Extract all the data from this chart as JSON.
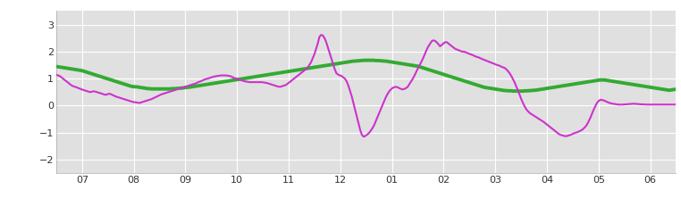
{
  "x_tick_labels": [
    "07",
    "08",
    "09",
    "10",
    "11",
    "12",
    "01",
    "02",
    "03",
    "04",
    "05",
    "06"
  ],
  "ylim": [
    -2.5,
    3.5
  ],
  "yticks": [
    -2,
    -1,
    0,
    1,
    2,
    3
  ],
  "outer_bg_color": "#ffffff",
  "plot_bg_color": "#e0e0e0",
  "green_color": "#33aa33",
  "purple_color": "#cc33cc",
  "green_linewidth": 2.8,
  "purple_linewidth": 1.5,
  "n_points": 365,
  "green_data": [
    1.45,
    1.44,
    1.43,
    1.42,
    1.41,
    1.4,
    1.39,
    1.38,
    1.37,
    1.36,
    1.35,
    1.34,
    1.33,
    1.32,
    1.31,
    1.3,
    1.28,
    1.26,
    1.24,
    1.22,
    1.2,
    1.18,
    1.16,
    1.14,
    1.12,
    1.1,
    1.08,
    1.06,
    1.04,
    1.02,
    1.0,
    0.98,
    0.96,
    0.94,
    0.92,
    0.9,
    0.88,
    0.86,
    0.84,
    0.82,
    0.8,
    0.78,
    0.76,
    0.74,
    0.72,
    0.71,
    0.7,
    0.7,
    0.69,
    0.68,
    0.67,
    0.66,
    0.65,
    0.64,
    0.63,
    0.63,
    0.62,
    0.62,
    0.62,
    0.62,
    0.62,
    0.62,
    0.62,
    0.62,
    0.62,
    0.62,
    0.62,
    0.62,
    0.63,
    0.63,
    0.63,
    0.64,
    0.64,
    0.65,
    0.65,
    0.66,
    0.67,
    0.68,
    0.68,
    0.69,
    0.7,
    0.71,
    0.72,
    0.73,
    0.74,
    0.75,
    0.76,
    0.77,
    0.78,
    0.79,
    0.8,
    0.81,
    0.82,
    0.83,
    0.84,
    0.85,
    0.86,
    0.87,
    0.88,
    0.89,
    0.9,
    0.91,
    0.92,
    0.93,
    0.94,
    0.95,
    0.96,
    0.97,
    0.98,
    0.99,
    1.0,
    1.01,
    1.02,
    1.03,
    1.04,
    1.05,
    1.06,
    1.07,
    1.08,
    1.09,
    1.1,
    1.11,
    1.12,
    1.13,
    1.14,
    1.15,
    1.16,
    1.17,
    1.18,
    1.19,
    1.2,
    1.21,
    1.22,
    1.23,
    1.24,
    1.25,
    1.26,
    1.27,
    1.28,
    1.29,
    1.3,
    1.31,
    1.32,
    1.33,
    1.34,
    1.35,
    1.36,
    1.37,
    1.38,
    1.39,
    1.4,
    1.41,
    1.42,
    1.43,
    1.44,
    1.45,
    1.46,
    1.47,
    1.48,
    1.49,
    1.5,
    1.51,
    1.52,
    1.53,
    1.54,
    1.55,
    1.56,
    1.57,
    1.58,
    1.59,
    1.6,
    1.61,
    1.62,
    1.63,
    1.64,
    1.65,
    1.65,
    1.66,
    1.66,
    1.67,
    1.67,
    1.68,
    1.68,
    1.68,
    1.68,
    1.68,
    1.68,
    1.68,
    1.67,
    1.67,
    1.67,
    1.66,
    1.66,
    1.65,
    1.65,
    1.64,
    1.63,
    1.62,
    1.61,
    1.6,
    1.59,
    1.58,
    1.57,
    1.56,
    1.55,
    1.54,
    1.53,
    1.52,
    1.51,
    1.5,
    1.49,
    1.48,
    1.47,
    1.46,
    1.44,
    1.42,
    1.4,
    1.38,
    1.36,
    1.34,
    1.32,
    1.3,
    1.28,
    1.26,
    1.24,
    1.22,
    1.2,
    1.18,
    1.16,
    1.14,
    1.12,
    1.1,
    1.08,
    1.06,
    1.04,
    1.02,
    1.0,
    0.98,
    0.96,
    0.94,
    0.92,
    0.9,
    0.88,
    0.86,
    0.84,
    0.82,
    0.8,
    0.78,
    0.76,
    0.74,
    0.72,
    0.7,
    0.68,
    0.67,
    0.66,
    0.65,
    0.64,
    0.63,
    0.62,
    0.61,
    0.6,
    0.59,
    0.58,
    0.57,
    0.56,
    0.56,
    0.55,
    0.55,
    0.55,
    0.54,
    0.54,
    0.54,
    0.54,
    0.54,
    0.54,
    0.54,
    0.55,
    0.55,
    0.55,
    0.56,
    0.56,
    0.57,
    0.57,
    0.58,
    0.59,
    0.6,
    0.61,
    0.62,
    0.63,
    0.64,
    0.65,
    0.66,
    0.67,
    0.68,
    0.69,
    0.7,
    0.71,
    0.72,
    0.73,
    0.74,
    0.75,
    0.76,
    0.77,
    0.78,
    0.79,
    0.8,
    0.81,
    0.82,
    0.83,
    0.84,
    0.85,
    0.86,
    0.87,
    0.88,
    0.89,
    0.9,
    0.91,
    0.92,
    0.93,
    0.94,
    0.95,
    0.95,
    0.95,
    0.95,
    0.94,
    0.93,
    0.92,
    0.91,
    0.9,
    0.89,
    0.88,
    0.87,
    0.86,
    0.85,
    0.84,
    0.83,
    0.82,
    0.81,
    0.8,
    0.79,
    0.78,
    0.77,
    0.76,
    0.75,
    0.74,
    0.73,
    0.72,
    0.71,
    0.7,
    0.69,
    0.68,
    0.67,
    0.66,
    0.65,
    0.64,
    0.63,
    0.62,
    0.61,
    0.6,
    0.59,
    0.58,
    0.57,
    0.58,
    0.59,
    0.6,
    0.61
  ],
  "purple_data": [
    1.15,
    1.12,
    1.1,
    1.05,
    1.0,
    0.95,
    0.9,
    0.85,
    0.8,
    0.75,
    0.72,
    0.7,
    0.68,
    0.65,
    0.63,
    0.6,
    0.58,
    0.56,
    0.54,
    0.52,
    0.5,
    0.52,
    0.53,
    0.52,
    0.5,
    0.48,
    0.46,
    0.44,
    0.42,
    0.4,
    0.42,
    0.44,
    0.43,
    0.4,
    0.37,
    0.34,
    0.32,
    0.3,
    0.28,
    0.26,
    0.24,
    0.22,
    0.2,
    0.18,
    0.16,
    0.14,
    0.13,
    0.12,
    0.11,
    0.1,
    0.12,
    0.14,
    0.16,
    0.18,
    0.2,
    0.22,
    0.24,
    0.27,
    0.3,
    0.33,
    0.36,
    0.39,
    0.42,
    0.44,
    0.46,
    0.48,
    0.5,
    0.52,
    0.54,
    0.56,
    0.58,
    0.6,
    0.62,
    0.64,
    0.66,
    0.68,
    0.7,
    0.72,
    0.74,
    0.76,
    0.78,
    0.8,
    0.82,
    0.85,
    0.88,
    0.9,
    0.93,
    0.96,
    0.98,
    1.0,
    1.02,
    1.04,
    1.06,
    1.08,
    1.09,
    1.1,
    1.11,
    1.12,
    1.12,
    1.12,
    1.12,
    1.11,
    1.1,
    1.08,
    1.05,
    1.02,
    1.0,
    0.98,
    0.96,
    0.94,
    0.92,
    0.9,
    0.89,
    0.88,
    0.87,
    0.87,
    0.87,
    0.87,
    0.87,
    0.87,
    0.87,
    0.87,
    0.86,
    0.85,
    0.84,
    0.82,
    0.8,
    0.78,
    0.76,
    0.74,
    0.72,
    0.7,
    0.7,
    0.72,
    0.74,
    0.76,
    0.8,
    0.85,
    0.9,
    0.95,
    1.0,
    1.05,
    1.1,
    1.15,
    1.2,
    1.25,
    1.3,
    1.35,
    1.4,
    1.5,
    1.6,
    1.75,
    1.9,
    2.1,
    2.3,
    2.55,
    2.62,
    2.6,
    2.5,
    2.35,
    2.15,
    1.95,
    1.75,
    1.55,
    1.35,
    1.2,
    1.15,
    1.12,
    1.1,
    1.05,
    1.0,
    0.9,
    0.75,
    0.55,
    0.35,
    0.1,
    -0.15,
    -0.4,
    -0.65,
    -0.9,
    -1.08,
    -1.15,
    -1.12,
    -1.08,
    -1.02,
    -0.95,
    -0.85,
    -0.75,
    -0.6,
    -0.45,
    -0.3,
    -0.15,
    0.0,
    0.15,
    0.3,
    0.42,
    0.52,
    0.6,
    0.65,
    0.68,
    0.7,
    0.68,
    0.65,
    0.62,
    0.6,
    0.62,
    0.65,
    0.7,
    0.8,
    0.9,
    1.0,
    1.12,
    1.25,
    1.38,
    1.5,
    1.62,
    1.75,
    1.9,
    2.05,
    2.18,
    2.28,
    2.38,
    2.42,
    2.4,
    2.35,
    2.28,
    2.2,
    2.25,
    2.3,
    2.35,
    2.35,
    2.3,
    2.25,
    2.2,
    2.15,
    2.1,
    2.08,
    2.05,
    2.03,
    2.0,
    2.0,
    1.98,
    1.95,
    1.93,
    1.9,
    1.88,
    1.85,
    1.82,
    1.8,
    1.78,
    1.75,
    1.72,
    1.7,
    1.67,
    1.65,
    1.62,
    1.6,
    1.57,
    1.55,
    1.52,
    1.5,
    1.48,
    1.45,
    1.42,
    1.4,
    1.35,
    1.28,
    1.2,
    1.1,
    0.98,
    0.85,
    0.7,
    0.55,
    0.38,
    0.22,
    0.08,
    -0.05,
    -0.15,
    -0.22,
    -0.28,
    -0.32,
    -0.36,
    -0.4,
    -0.44,
    -0.48,
    -0.52,
    -0.56,
    -0.6,
    -0.65,
    -0.7,
    -0.75,
    -0.8,
    -0.85,
    -0.9,
    -0.95,
    -1.0,
    -1.05,
    -1.08,
    -1.1,
    -1.12,
    -1.13,
    -1.12,
    -1.1,
    -1.08,
    -1.05,
    -1.02,
    -1.0,
    -0.98,
    -0.95,
    -0.92,
    -0.88,
    -0.82,
    -0.75,
    -0.65,
    -0.52,
    -0.38,
    -0.22,
    -0.08,
    0.05,
    0.15,
    0.2,
    0.22,
    0.2,
    0.18,
    0.15,
    0.12,
    0.1,
    0.08,
    0.07,
    0.06,
    0.05,
    0.04,
    0.04,
    0.04,
    0.04,
    0.05,
    0.05,
    0.06,
    0.06,
    0.07,
    0.07,
    0.07,
    0.06,
    0.06,
    0.05,
    0.05,
    0.05,
    0.04,
    0.04,
    0.04,
    0.04,
    0.04,
    0.04,
    0.04,
    0.04,
    0.04,
    0.04,
    0.04,
    0.04,
    0.04,
    0.04,
    0.04,
    0.04,
    0.04,
    0.04,
    0.04
  ]
}
